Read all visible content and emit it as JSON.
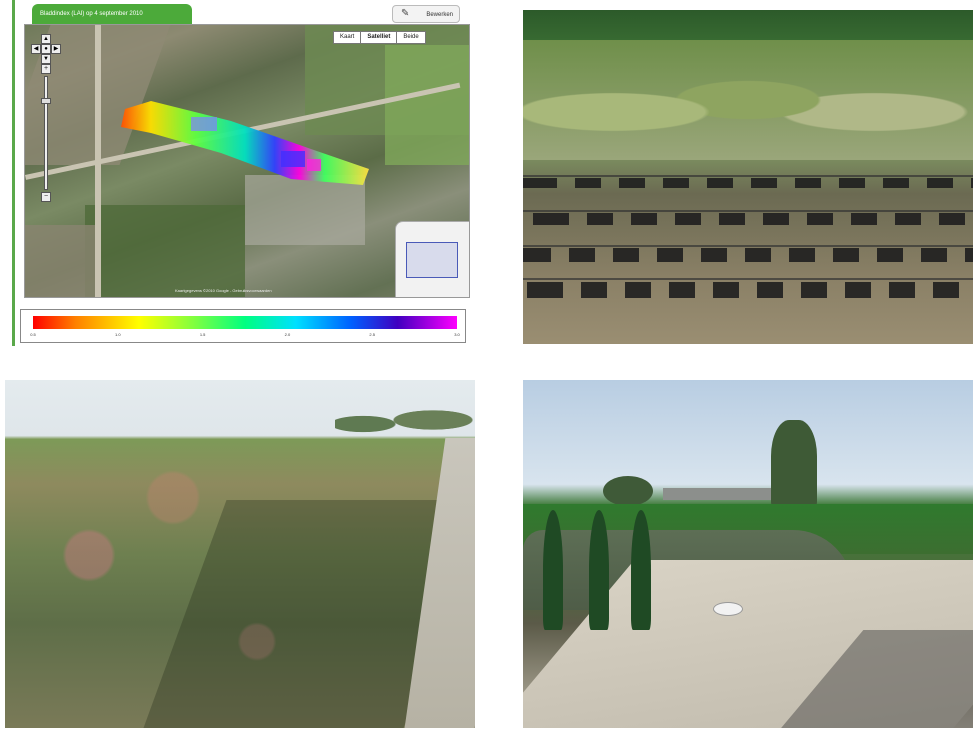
{
  "map": {
    "title": "Bladdindex (LAI) op 4 september 2010",
    "tool_button_label": "Bewerken",
    "map_types": [
      "Kaart",
      "Satelliet",
      "Beide"
    ],
    "active_map_type": "Satelliet",
    "attribution": "Kaartgegevens ©2010 Google - Gebruiksvoorwaarden",
    "zoom_level_fraction": 0.2,
    "legend": {
      "ticks": [
        "0.5",
        "1.0",
        "1.5",
        "2.0",
        "2.5",
        "3.0"
      ]
    }
  },
  "photos": [
    {
      "name": "potted-nursery-photo"
    },
    {
      "name": "field-shrubs-photo"
    },
    {
      "name": "hedge-nursery-photo"
    }
  ]
}
